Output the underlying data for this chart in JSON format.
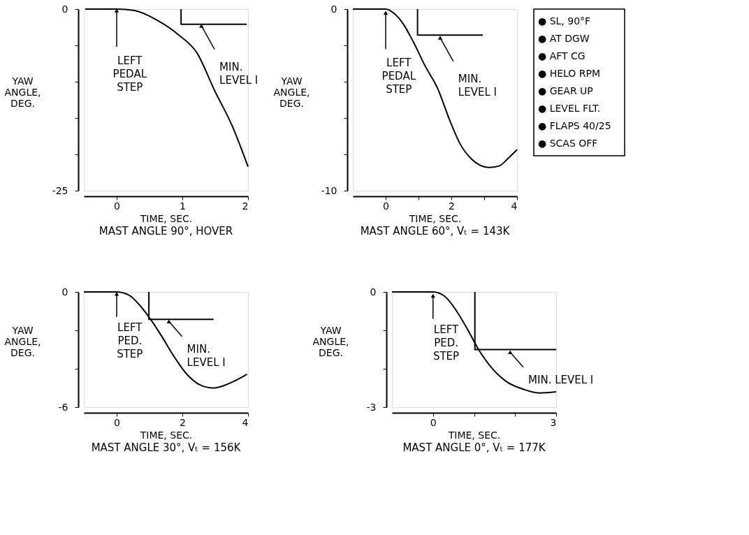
{
  "chart_data": [
    {
      "type": "line",
      "title": "MAST ANGLE 90°, HOVER",
      "xlabel": "TIME, SEC.",
      "ylabel": "YAW\nANGLE,\nDEG.",
      "xlim": [
        -0.5,
        2
      ],
      "xticks": [
        0,
        1,
        2
      ],
      "ylim": [
        -25,
        0
      ],
      "yticks": [
        0,
        {
          "value": -5,
          "label": null
        },
        {
          "value": -10,
          "label": null
        },
        {
          "value": -15,
          "label": null
        },
        {
          "value": -20,
          "label": null
        },
        -25
      ],
      "series": [
        {
          "type": "line",
          "color": "#000000",
          "x": [
            -0.48,
            0,
            0.27,
            0.61,
            0.95,
            1.22,
            1.49,
            1.76,
            2.0
          ],
          "values": [
            0,
            0,
            -0.2,
            -1.5,
            -3.6,
            -6.0,
            -11.2,
            -16.1,
            -21.7
          ]
        },
        {
          "type": "line",
          "color": "#000000",
          "x": [
            0.98,
            0.98,
            1.98
          ],
          "values": [
            0,
            -2.1,
            -2.1
          ]
        }
      ],
      "annotations": [
        {
          "text": "LEFT\nPEDAL\nSTEP",
          "x": 0,
          "y": -0.2
        },
        {
          "text": "MIN.\nLEVEL I",
          "x": 1.29,
          "y": -2.3
        }
      ]
    },
    {
      "type": "line",
      "title": "MAST ANGLE 60°, Vₜ = 143K",
      "xlabel": "TIME, SEC.",
      "ylabel": "YAW\nANGLE,\nDEG.",
      "xlim": [
        -1,
        4
      ],
      "xticks": [
        0,
        {
          "value": 1,
          "label": null
        },
        2,
        {
          "value": 3,
          "label": null
        },
        4
      ],
      "ylim": [
        -10,
        0
      ],
      "yticks": [
        0,
        {
          "value": -2,
          "label": null
        },
        {
          "value": -4,
          "label": null
        },
        {
          "value": -6,
          "label": null
        },
        {
          "value": -8,
          "label": null
        },
        -10
      ],
      "series": [
        {
          "type": "line",
          "color": "#000000",
          "x": [
            -1,
            -0.42,
            0,
            0.25,
            0.54,
            0.84,
            1.21,
            1.58,
            1.96,
            2.25,
            2.62,
            3.14,
            3.44,
            3.74,
            4.0
          ],
          "values": [
            0,
            0,
            0,
            -0.23,
            -0.83,
            -1.8,
            -3.16,
            -4.36,
            -6.17,
            -7.37,
            -8.27,
            -8.72,
            -8.65,
            -8.2,
            -7.74
          ]
        },
        {
          "type": "line",
          "color": "#000000",
          "x": [
            0.97,
            0.97,
            2.96
          ],
          "values": [
            0,
            -1.43,
            -1.43
          ]
        }
      ],
      "annotations": [
        {
          "text": "LEFT\nPEDAL\nSTEP",
          "x": 0,
          "y": -0.2
        },
        {
          "text": "MIN.\nLEVEL I",
          "x": 1.66,
          "y": -1.58
        }
      ]
    },
    {
      "type": "other",
      "annotations": [
        "● SL, 90°F",
        "● AT DGW",
        "● AFT CG",
        "● HELO RPM",
        "● GEAR UP",
        "● LEVEL FLT.",
        "● FLAPS 40/25",
        "● SCAS OFF"
      ]
    },
    {
      "type": "line",
      "title": "MAST ANGLE 30°, Vₜ = 156K",
      "xlabel": "TIME, SEC.",
      "ylabel": "YAW\nANGLE,\nDEG.",
      "xlim": [
        -1,
        4
      ],
      "xticks": [
        0,
        2,
        4
      ],
      "ylim": [
        -6,
        0
      ],
      "yticks": [
        0,
        {
          "value": -2,
          "label": null
        },
        {
          "value": -4,
          "label": null
        },
        -6
      ],
      "series": [
        {
          "type": "line",
          "color": "#000000",
          "x": [
            -1,
            0,
            0.37,
            0.71,
            1.05,
            1.39,
            1.73,
            2.14,
            2.54,
            2.95,
            3.42,
            3.97
          ],
          "values": [
            0,
            0,
            -0.16,
            -0.71,
            -1.47,
            -2.36,
            -3.32,
            -4.29,
            -4.84,
            -5.0,
            -4.77,
            -4.29
          ]
        },
        {
          "type": "line",
          "color": "#000000",
          "x": [
            0.98,
            0.98,
            2.95
          ],
          "values": [
            0,
            -1.43,
            -1.43
          ]
        }
      ],
      "annotations": [
        {
          "text": "LEFT\nPED.\nSTEP",
          "x": 0,
          "y": -0.1
        },
        {
          "text": "MIN.\nLEVEL I",
          "x": 1.59,
          "y": -1.54
        }
      ]
    },
    {
      "type": "line",
      "title": "MAST ANGLE 0°, Vₜ = 177K",
      "xlabel": "TIME, SEC.",
      "ylabel": "YAW\nANGLE,\nDEG.",
      "xlim": [
        -1,
        3
      ],
      "xticks": [
        0,
        {
          "value": 1,
          "label": null
        },
        {
          "value": 2,
          "label": null
        },
        3
      ],
      "ylim": [
        -3,
        0
      ],
      "yticks": [
        0,
        {
          "value": -1,
          "label": null
        },
        {
          "value": -2,
          "label": null
        },
        -3
      ],
      "series": [
        {
          "type": "line",
          "color": "#000000",
          "x": [
            -1,
            -0.3,
            0,
            0.28,
            0.57,
            0.87,
            1.1,
            1.4,
            1.77,
            2.22,
            2.59,
            3.0
          ],
          "values": [
            0,
            0,
            0,
            -0.11,
            -0.49,
            -1.03,
            -1.48,
            -1.94,
            -2.32,
            -2.54,
            -2.63,
            -2.6
          ]
        },
        {
          "type": "line",
          "color": "#000000",
          "x": [
            1.02,
            1.02,
            3.0
          ],
          "values": [
            0,
            -1.5,
            -1.5
          ]
        }
      ],
      "annotations": [
        {
          "text": "LEFT\nPED.\nSTEP",
          "x": 0,
          "y": -0.1
        },
        {
          "text": "MIN. LEVEL I",
          "x": 1.88,
          "y": -1.57
        }
      ]
    }
  ]
}
